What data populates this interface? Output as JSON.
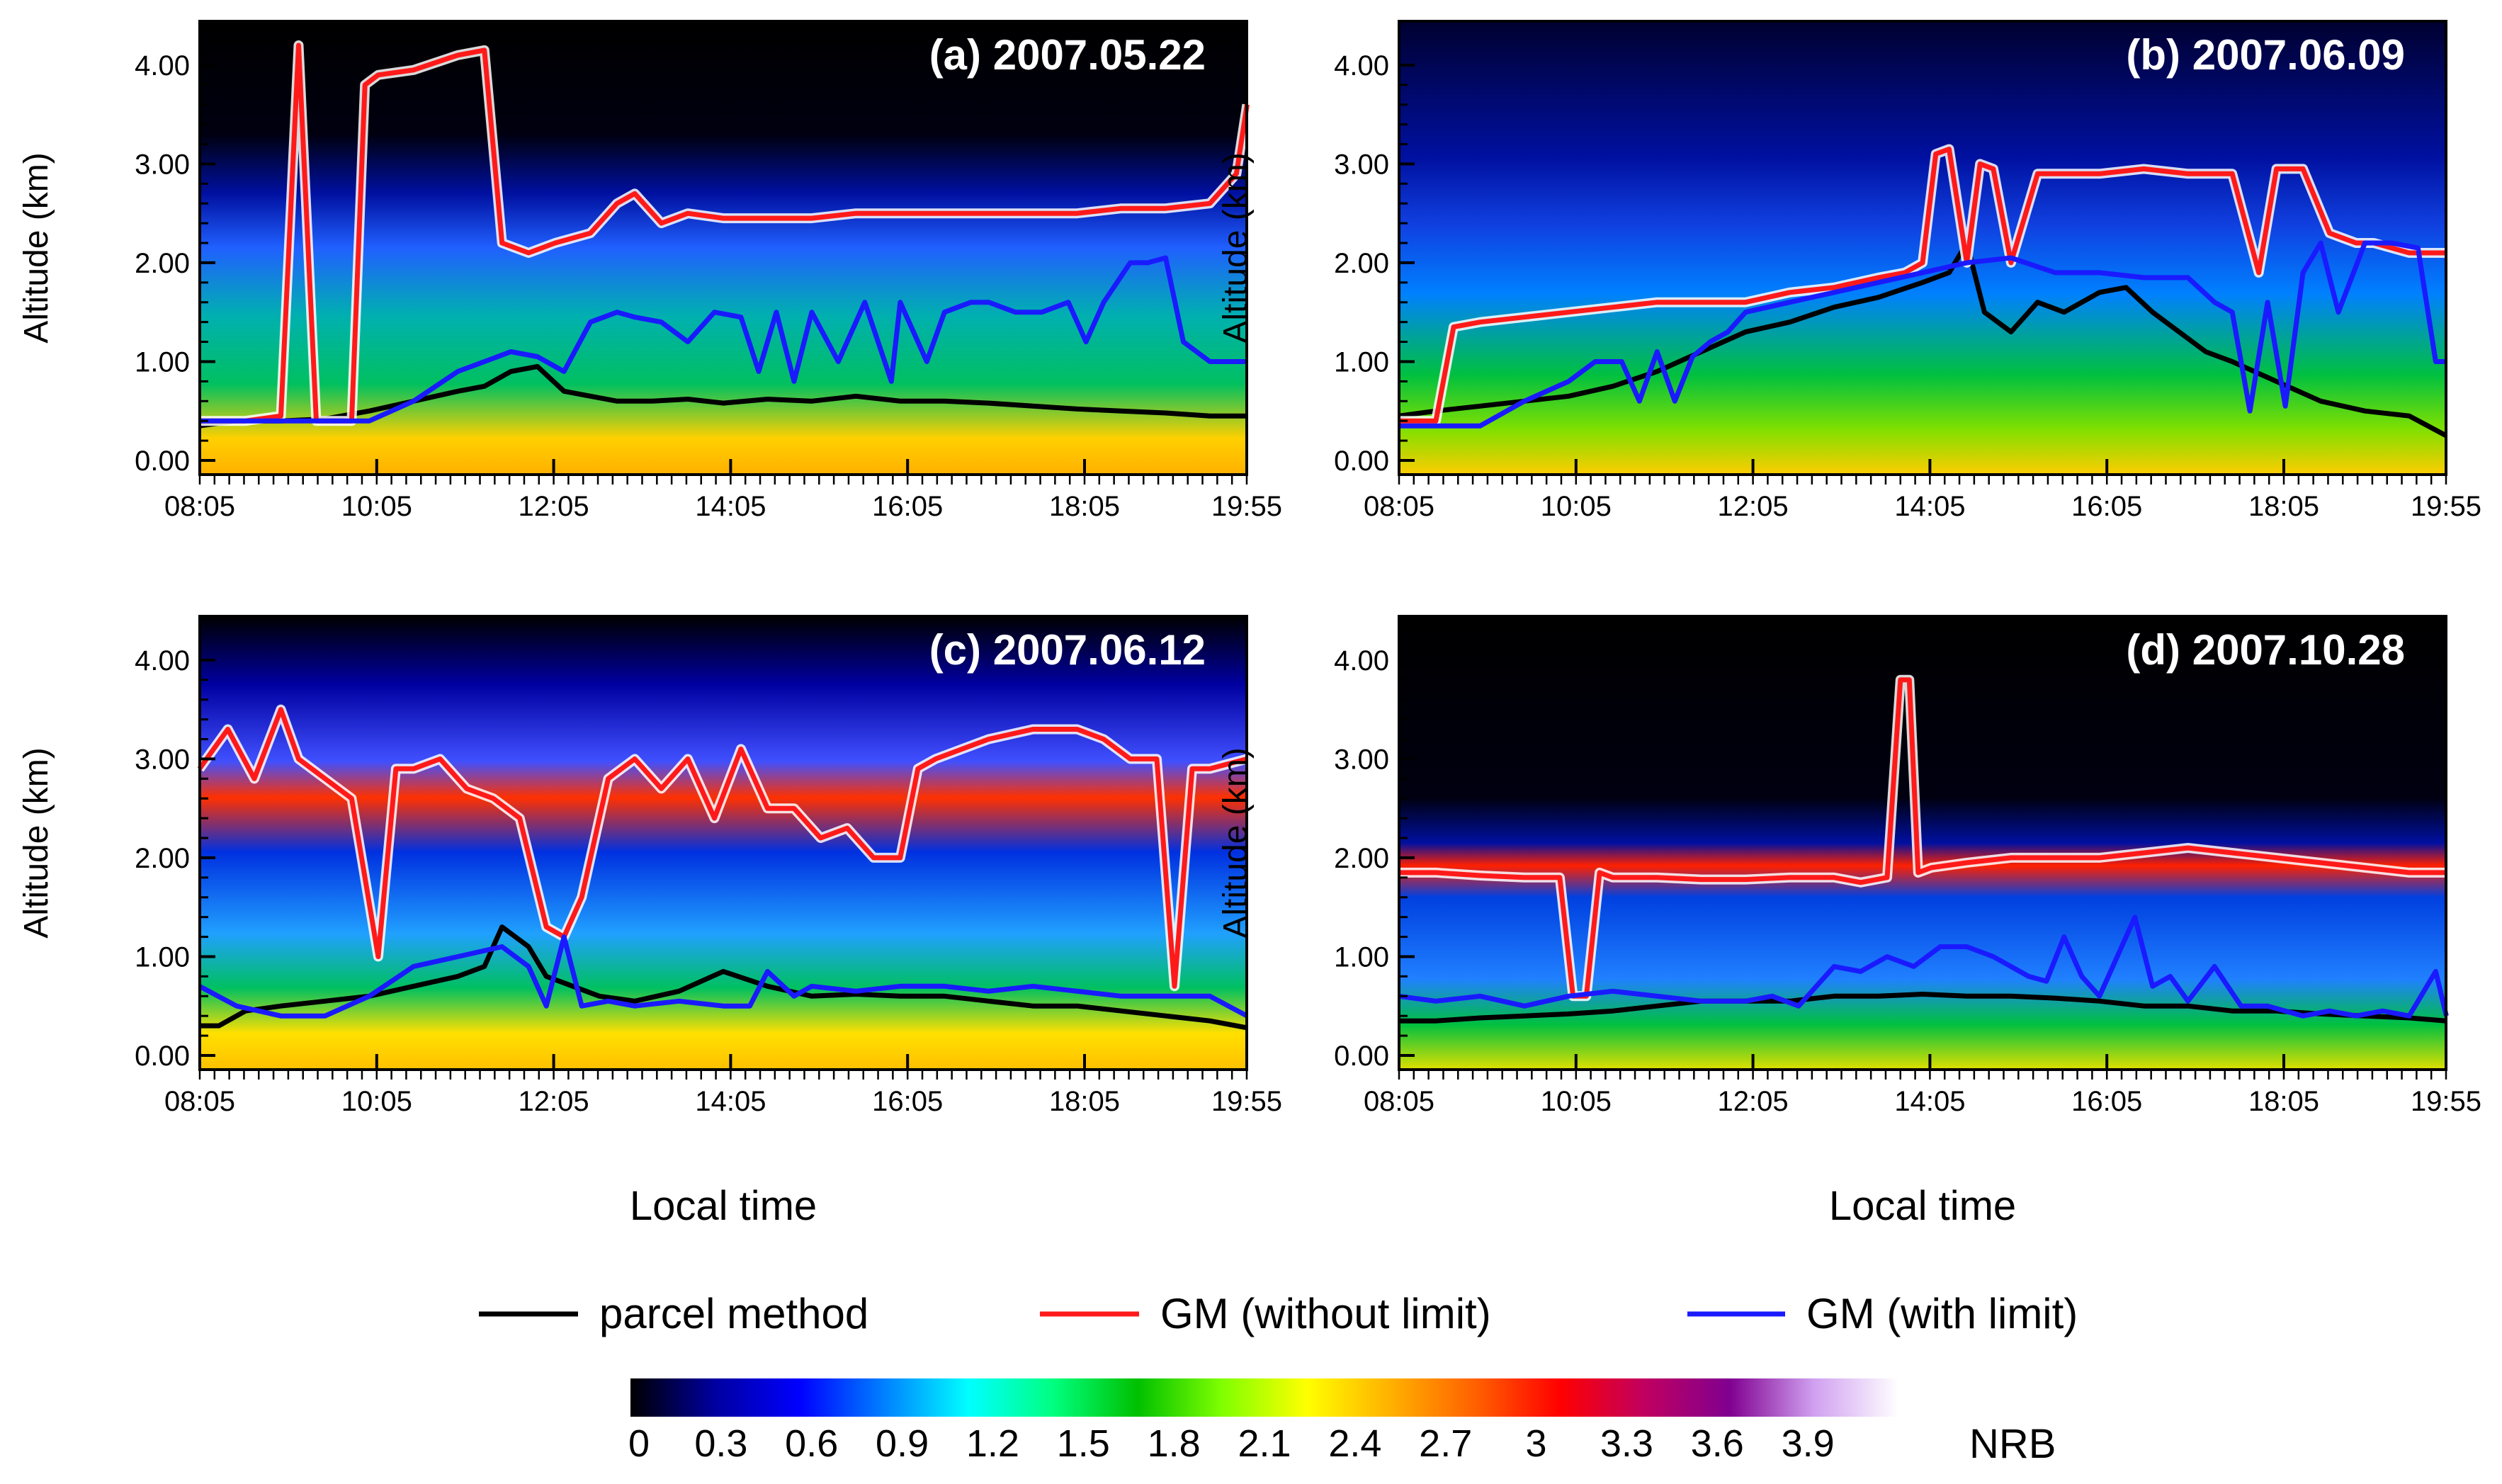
{
  "figure": {
    "xlabel": "Local time",
    "ylabel": "Altitude (km)",
    "xticks": [
      "08:05",
      "10:05",
      "12:05",
      "14:05",
      "16:05",
      "18:05",
      "19:55"
    ],
    "yticks": [
      "0.00",
      "1.00",
      "2.00",
      "3.00",
      "4.00"
    ],
    "legend": {
      "items": [
        {
          "key": "parcel",
          "label": "parcel method",
          "color": "#000000"
        },
        {
          "key": "gm_nolimit",
          "label": "GM (without limit)",
          "color": "#ff1a1a"
        },
        {
          "key": "gm_limit",
          "label": "GM (with limit)",
          "color": "#1a1aff"
        }
      ]
    },
    "colorbar": {
      "label": "NRB",
      "ticks": [
        "0",
        "0.3",
        "0.6",
        "0.9",
        "1.2",
        "1.5",
        "1.8",
        "2.1",
        "2.4",
        "2.7",
        "3",
        "3.3",
        "3.6",
        "3.9"
      ],
      "range": [
        0,
        4.2
      ],
      "colors": [
        "#000000",
        "#0000a0",
        "#0000ff",
        "#0080ff",
        "#00ffff",
        "#00ff80",
        "#00c000",
        "#80ff00",
        "#ffff00",
        "#ffb000",
        "#ff6000",
        "#ff0000",
        "#c00060",
        "#800090",
        "#d0a0f0",
        "#ffffff"
      ]
    }
  },
  "chart_data": [
    {
      "type": "line",
      "title": "(a) 2007.05.22",
      "x_hours": [
        8.08,
        19.92
      ],
      "ylim": [
        0,
        4.3
      ],
      "series": [
        {
          "name": "parcel method",
          "x": [
            8.08,
            8.5,
            9.0,
            9.5,
            10.0,
            10.5,
            11.0,
            11.3,
            11.6,
            11.9,
            12.2,
            12.5,
            12.8,
            13.2,
            13.6,
            14.0,
            14.5,
            15.0,
            15.5,
            16.0,
            16.5,
            17.0,
            17.5,
            18.0,
            18.5,
            19.0,
            19.5,
            19.92
          ],
          "y": [
            0.35,
            0.4,
            0.4,
            0.42,
            0.5,
            0.6,
            0.7,
            0.75,
            0.9,
            0.95,
            0.7,
            0.65,
            0.6,
            0.6,
            0.62,
            0.58,
            0.62,
            0.6,
            0.65,
            0.6,
            0.6,
            0.58,
            0.55,
            0.52,
            0.5,
            0.48,
            0.45,
            0.45
          ]
        },
        {
          "name": "GM (without limit)",
          "x": [
            8.08,
            8.6,
            9.0,
            9.2,
            9.4,
            9.6,
            9.8,
            9.95,
            10.1,
            10.5,
            11.0,
            11.3,
            11.5,
            11.8,
            12.1,
            12.5,
            12.8,
            13.0,
            13.3,
            13.6,
            14.0,
            14.5,
            15.0,
            15.5,
            16.0,
            16.5,
            17.0,
            17.5,
            18.0,
            18.5,
            19.0,
            19.5,
            19.8,
            19.92
          ],
          "y": [
            0.4,
            0.4,
            0.45,
            4.2,
            0.4,
            0.4,
            0.4,
            3.8,
            3.9,
            3.95,
            4.1,
            4.15,
            2.2,
            2.1,
            2.2,
            2.3,
            2.6,
            2.7,
            2.4,
            2.5,
            2.45,
            2.45,
            2.45,
            2.5,
            2.5,
            2.5,
            2.5,
            2.5,
            2.5,
            2.55,
            2.55,
            2.6,
            2.9,
            3.6
          ]
        },
        {
          "name": "GM (with limit)",
          "x": [
            8.08,
            8.6,
            9.0,
            9.5,
            10.0,
            10.5,
            11.0,
            11.3,
            11.6,
            11.9,
            12.2,
            12.5,
            12.8,
            13.0,
            13.3,
            13.6,
            13.9,
            14.2,
            14.4,
            14.6,
            14.8,
            15.0,
            15.3,
            15.6,
            15.9,
            16.0,
            16.3,
            16.5,
            16.8,
            17.0,
            17.3,
            17.6,
            17.9,
            18.1,
            18.3,
            18.6,
            18.8,
            19.0,
            19.2,
            19.5,
            19.7,
            19.92
          ],
          "y": [
            0.4,
            0.4,
            0.4,
            0.4,
            0.4,
            0.6,
            0.9,
            1.0,
            1.1,
            1.05,
            0.9,
            1.4,
            1.5,
            1.45,
            1.4,
            1.2,
            1.5,
            1.45,
            0.9,
            1.5,
            0.8,
            1.5,
            1.0,
            1.6,
            0.8,
            1.6,
            1.0,
            1.5,
            1.6,
            1.6,
            1.5,
            1.5,
            1.6,
            1.2,
            1.6,
            2.0,
            2.0,
            2.05,
            1.2,
            1.0,
            1.0,
            1.0
          ]
        }
      ]
    },
    {
      "type": "line",
      "title": "(b) 2007.06.09",
      "x_hours": [
        8.08,
        19.92
      ],
      "ylim": [
        0,
        4.3
      ],
      "series": [
        {
          "name": "parcel method",
          "x": [
            8.08,
            8.5,
            9.0,
            9.5,
            10.0,
            10.5,
            11.0,
            11.5,
            12.0,
            12.5,
            13.0,
            13.5,
            14.0,
            14.3,
            14.5,
            14.7,
            15.0,
            15.3,
            15.6,
            16.0,
            16.3,
            16.6,
            16.9,
            17.2,
            17.5,
            18.0,
            18.5,
            19.0,
            19.5,
            19.92
          ],
          "y": [
            0.45,
            0.5,
            0.55,
            0.6,
            0.65,
            0.75,
            0.9,
            1.1,
            1.3,
            1.4,
            1.55,
            1.65,
            1.8,
            1.9,
            2.2,
            1.5,
            1.3,
            1.6,
            1.5,
            1.7,
            1.75,
            1.5,
            1.3,
            1.1,
            1.0,
            0.8,
            0.6,
            0.5,
            0.45,
            0.25
          ]
        },
        {
          "name": "GM (without limit)",
          "x": [
            8.08,
            8.5,
            8.7,
            9.0,
            9.5,
            10.0,
            10.5,
            11.0,
            11.5,
            12.0,
            12.5,
            13.0,
            13.5,
            13.8,
            14.0,
            14.15,
            14.3,
            14.5,
            14.65,
            14.8,
            15.0,
            15.3,
            15.5,
            16.0,
            16.5,
            17.0,
            17.5,
            17.8,
            18.0,
            18.3,
            18.6,
            18.9,
            19.1,
            19.3,
            19.5,
            19.92
          ],
          "y": [
            0.4,
            0.4,
            1.35,
            1.4,
            1.45,
            1.5,
            1.55,
            1.6,
            1.6,
            1.6,
            1.7,
            1.75,
            1.85,
            1.9,
            2.0,
            3.1,
            3.15,
            2.0,
            3.0,
            2.95,
            2.0,
            2.9,
            2.9,
            2.9,
            2.95,
            2.9,
            2.9,
            1.9,
            2.95,
            2.95,
            2.3,
            2.2,
            2.2,
            2.15,
            2.1,
            2.1
          ]
        },
        {
          "name": "GM (with limit)",
          "x": [
            8.08,
            8.5,
            9.0,
            9.5,
            10.0,
            10.3,
            10.6,
            10.8,
            11.0,
            11.2,
            11.4,
            11.6,
            11.8,
            12.0,
            12.5,
            13.0,
            13.5,
            14.0,
            14.5,
            15.0,
            15.5,
            16.0,
            16.5,
            17.0,
            17.3,
            17.5,
            17.7,
            17.9,
            18.1,
            18.3,
            18.5,
            18.7,
            19.0,
            19.3,
            19.6,
            19.8,
            19.92
          ],
          "y": [
            0.35,
            0.35,
            0.35,
            0.6,
            0.8,
            1.0,
            1.0,
            0.6,
            1.1,
            0.6,
            1.05,
            1.2,
            1.3,
            1.5,
            1.6,
            1.7,
            1.8,
            1.9,
            2.0,
            2.05,
            1.9,
            1.9,
            1.85,
            1.85,
            1.6,
            1.5,
            0.5,
            1.6,
            0.55,
            1.9,
            2.2,
            1.5,
            2.2,
            2.2,
            2.15,
            1.0,
            1.0
          ]
        }
      ]
    },
    {
      "type": "line",
      "title": "(c) 2007.06.12",
      "x_hours": [
        8.08,
        19.92
      ],
      "ylim": [
        0,
        4.3
      ],
      "series": [
        {
          "name": "parcel method",
          "x": [
            8.08,
            8.3,
            8.6,
            9.0,
            9.5,
            10.0,
            10.5,
            11.0,
            11.3,
            11.5,
            11.8,
            12.0,
            12.3,
            12.6,
            13.0,
            13.5,
            14.0,
            14.5,
            15.0,
            15.5,
            16.0,
            16.5,
            17.0,
            17.5,
            18.0,
            18.5,
            19.0,
            19.5,
            19.92
          ],
          "y": [
            0.3,
            0.3,
            0.45,
            0.5,
            0.55,
            0.6,
            0.7,
            0.8,
            0.9,
            1.3,
            1.1,
            0.8,
            0.7,
            0.6,
            0.55,
            0.65,
            0.85,
            0.7,
            0.6,
            0.62,
            0.6,
            0.6,
            0.55,
            0.5,
            0.5,
            0.45,
            0.4,
            0.35,
            0.28
          ]
        },
        {
          "name": "GM (without limit)",
          "x": [
            8.08,
            8.4,
            8.7,
            9.0,
            9.2,
            9.5,
            9.8,
            10.1,
            10.3,
            10.5,
            10.8,
            11.1,
            11.4,
            11.7,
            12.0,
            12.2,
            12.4,
            12.7,
            13.0,
            13.3,
            13.6,
            13.9,
            14.2,
            14.5,
            14.8,
            15.1,
            15.4,
            15.7,
            16.0,
            16.2,
            16.4,
            16.7,
            17.0,
            17.5,
            18.0,
            18.3,
            18.6,
            18.9,
            19.1,
            19.3,
            19.5,
            19.92
          ],
          "y": [
            2.9,
            3.3,
            2.8,
            3.5,
            3.0,
            2.8,
            2.6,
            1.0,
            2.9,
            2.9,
            3.0,
            2.7,
            2.6,
            2.4,
            1.3,
            1.2,
            1.6,
            2.8,
            3.0,
            2.7,
            3.0,
            2.4,
            3.1,
            2.5,
            2.5,
            2.2,
            2.3,
            2.0,
            2.0,
            2.9,
            3.0,
            3.1,
            3.2,
            3.3,
            3.3,
            3.2,
            3.0,
            3.0,
            0.7,
            2.9,
            2.9,
            3.0
          ]
        },
        {
          "name": "GM (with limit)",
          "x": [
            8.08,
            8.5,
            9.0,
            9.5,
            10.0,
            10.5,
            11.0,
            11.5,
            11.8,
            12.0,
            12.2,
            12.4,
            12.7,
            13.0,
            13.5,
            14.0,
            14.3,
            14.5,
            14.8,
            15.0,
            15.5,
            16.0,
            16.5,
            17.0,
            17.5,
            18.0,
            18.5,
            19.0,
            19.5,
            19.92
          ],
          "y": [
            0.7,
            0.5,
            0.4,
            0.4,
            0.6,
            0.9,
            1.0,
            1.1,
            0.9,
            0.5,
            1.2,
            0.5,
            0.55,
            0.5,
            0.55,
            0.5,
            0.5,
            0.85,
            0.6,
            0.7,
            0.65,
            0.7,
            0.7,
            0.65,
            0.7,
            0.65,
            0.6,
            0.6,
            0.6,
            0.4
          ]
        }
      ]
    },
    {
      "type": "line",
      "title": "(d) 2007.10.28",
      "x_hours": [
        8.08,
        19.92
      ],
      "ylim": [
        0,
        4.3
      ],
      "series": [
        {
          "name": "parcel method",
          "x": [
            8.08,
            8.5,
            9.0,
            9.5,
            10.0,
            10.5,
            11.0,
            11.5,
            12.0,
            12.5,
            13.0,
            13.5,
            14.0,
            14.5,
            15.0,
            15.5,
            16.0,
            16.5,
            17.0,
            17.5,
            18.0,
            18.5,
            19.0,
            19.5,
            19.92
          ],
          "y": [
            0.35,
            0.35,
            0.38,
            0.4,
            0.42,
            0.45,
            0.5,
            0.55,
            0.55,
            0.55,
            0.6,
            0.6,
            0.62,
            0.6,
            0.6,
            0.58,
            0.55,
            0.5,
            0.5,
            0.45,
            0.45,
            0.42,
            0.4,
            0.38,
            0.35
          ]
        },
        {
          "name": "GM (without limit)",
          "x": [
            8.08,
            8.5,
            9.0,
            9.5,
            9.9,
            10.05,
            10.2,
            10.35,
            10.5,
            11.0,
            11.5,
            12.0,
            12.5,
            13.0,
            13.3,
            13.6,
            13.75,
            13.85,
            13.95,
            14.1,
            14.5,
            15.0,
            15.5,
            16.0,
            16.5,
            17.0,
            17.5,
            18.0,
            18.5,
            19.0,
            19.5,
            19.92
          ],
          "y": [
            1.85,
            1.85,
            1.82,
            1.8,
            1.8,
            0.6,
            0.6,
            1.85,
            1.8,
            1.8,
            1.78,
            1.78,
            1.8,
            1.8,
            1.75,
            1.8,
            3.8,
            3.8,
            1.85,
            1.9,
            1.95,
            2.0,
            2.0,
            2.0,
            2.05,
            2.1,
            2.05,
            2.0,
            1.95,
            1.9,
            1.85,
            1.85
          ]
        },
        {
          "name": "GM (with limit)",
          "x": [
            8.08,
            8.5,
            9.0,
            9.5,
            10.0,
            10.5,
            11.0,
            11.5,
            12.0,
            12.3,
            12.6,
            13.0,
            13.3,
            13.6,
            13.9,
            14.2,
            14.5,
            14.8,
            15.0,
            15.2,
            15.4,
            15.6,
            15.8,
            16.0,
            16.2,
            16.4,
            16.6,
            16.8,
            17.0,
            17.3,
            17.6,
            17.9,
            18.1,
            18.3,
            18.6,
            18.9,
            19.2,
            19.5,
            19.8,
            19.92
          ],
          "y": [
            0.6,
            0.55,
            0.6,
            0.5,
            0.6,
            0.65,
            0.6,
            0.55,
            0.55,
            0.6,
            0.5,
            0.9,
            0.85,
            1.0,
            0.9,
            1.1,
            1.1,
            1.0,
            0.9,
            0.8,
            0.75,
            1.2,
            0.8,
            0.6,
            1.0,
            1.4,
            0.7,
            0.8,
            0.55,
            0.9,
            0.5,
            0.5,
            0.45,
            0.4,
            0.45,
            0.4,
            0.45,
            0.4,
            0.85,
            0.4
          ]
        }
      ]
    }
  ]
}
